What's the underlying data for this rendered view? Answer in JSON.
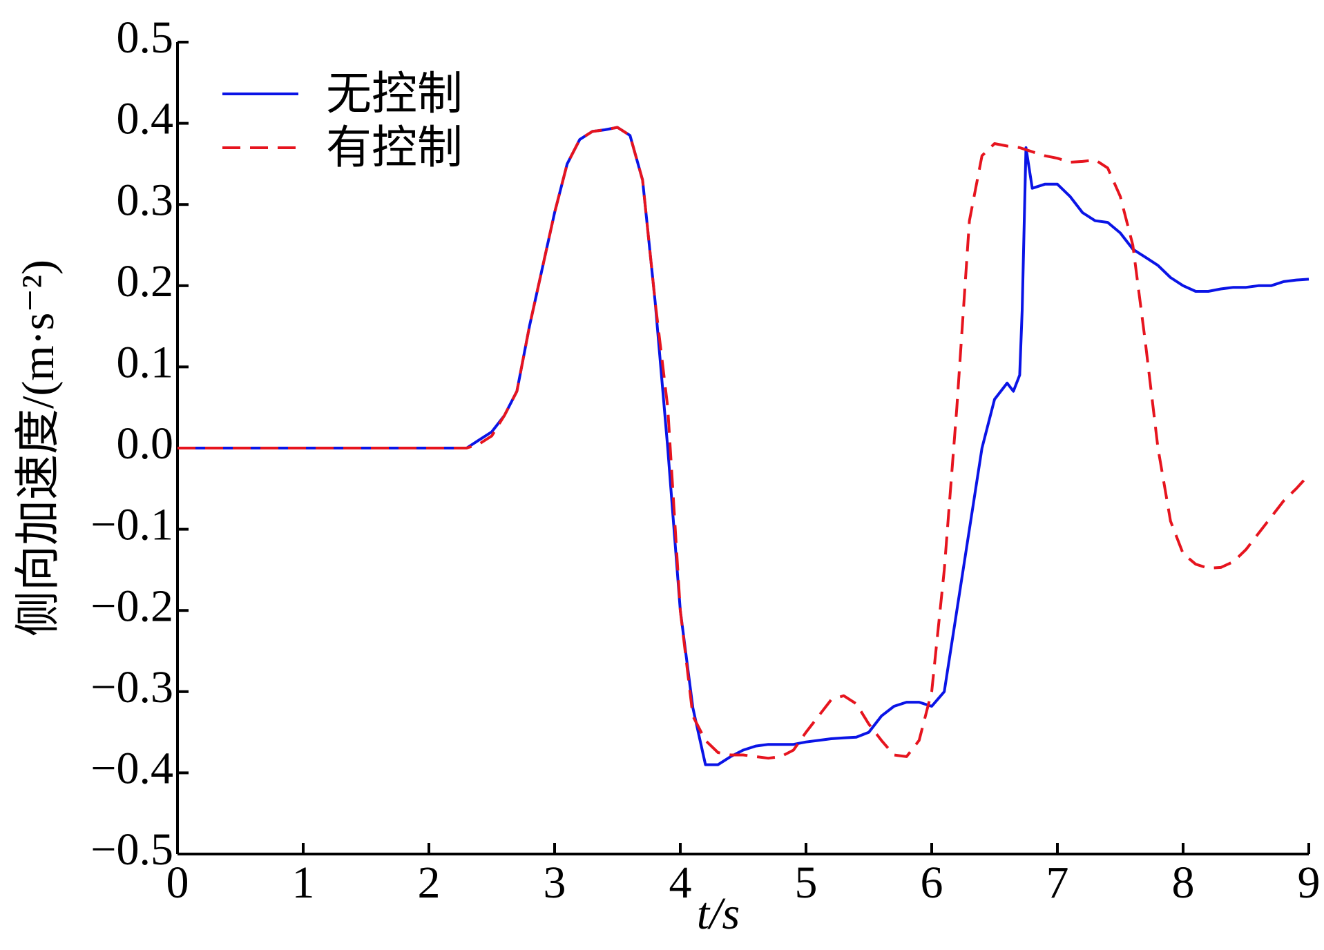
{
  "chart_data": {
    "type": "line",
    "xlabel": "t/s",
    "ylabel": "侧向加速度/(m·s⁻²)",
    "xlim": [
      0,
      9
    ],
    "ylim": [
      -0.5,
      0.5
    ],
    "xticks": [
      0,
      1,
      2,
      3,
      4,
      5,
      6,
      7,
      8,
      9
    ],
    "yticks": [
      {
        "value": -0.5,
        "label": "−0.5"
      },
      {
        "value": -0.4,
        "label": "−0.4"
      },
      {
        "value": -0.3,
        "label": "−0.3"
      },
      {
        "value": -0.2,
        "label": "−0.2"
      },
      {
        "value": -0.1,
        "label": "−0.1"
      },
      {
        "value": 0,
        "label": "0.0"
      },
      0.1,
      0.2,
      0.3,
      0.4,
      0.5
    ],
    "legend": "upper left",
    "series": [
      {
        "name": "无控制",
        "color": "#0a14e6",
        "linestyle": "solid",
        "x": [
          0,
          0.5,
          1,
          1.5,
          2,
          2.3,
          2.4,
          2.5,
          2.6,
          2.7,
          2.8,
          2.9,
          3.0,
          3.1,
          3.2,
          3.3,
          3.4,
          3.5,
          3.6,
          3.7,
          3.8,
          3.9,
          4.0,
          4.1,
          4.2,
          4.3,
          4.4,
          4.5,
          4.6,
          4.7,
          4.8,
          4.9,
          5.0,
          5.1,
          5.2,
          5.3,
          5.4,
          5.5,
          5.6,
          5.7,
          5.8,
          5.9,
          6.0,
          6.1,
          6.2,
          6.3,
          6.4,
          6.5,
          6.6,
          6.65,
          6.7,
          6.72,
          6.75,
          6.8,
          6.9,
          7.0,
          7.1,
          7.2,
          7.3,
          7.4,
          7.5,
          7.6,
          7.7,
          7.8,
          7.9,
          8.0,
          8.1,
          8.2,
          8.3,
          8.4,
          8.5,
          8.6,
          8.7,
          8.8,
          8.9,
          9.0
        ],
        "values": [
          0,
          0,
          0,
          0,
          0,
          0,
          0.01,
          0.02,
          0.04,
          0.07,
          0.15,
          0.22,
          0.29,
          0.35,
          0.38,
          0.39,
          0.392,
          0.395,
          0.385,
          0.33,
          0.18,
          0.0,
          -0.2,
          -0.32,
          -0.39,
          -0.39,
          -0.38,
          -0.372,
          -0.367,
          -0.365,
          -0.365,
          -0.365,
          -0.362,
          -0.36,
          -0.358,
          -0.357,
          -0.356,
          -0.35,
          -0.33,
          -0.318,
          -0.313,
          -0.313,
          -0.318,
          -0.3,
          -0.2,
          -0.1,
          0.0,
          0.06,
          0.08,
          0.07,
          0.09,
          0.17,
          0.37,
          0.32,
          0.325,
          0.325,
          0.31,
          0.29,
          0.28,
          0.278,
          0.265,
          0.245,
          0.235,
          0.225,
          0.21,
          0.2,
          0.193,
          0.193,
          0.196,
          0.198,
          0.198,
          0.2,
          0.2,
          0.205,
          0.207,
          0.208
        ]
      },
      {
        "name": "有控制",
        "color": "#e6141e",
        "linestyle": "dashed",
        "x": [
          0,
          0.5,
          1,
          1.5,
          2,
          2.3,
          2.4,
          2.5,
          2.6,
          2.7,
          2.8,
          2.9,
          3.0,
          3.1,
          3.2,
          3.3,
          3.4,
          3.5,
          3.6,
          3.7,
          3.8,
          3.9,
          4.0,
          4.1,
          4.2,
          4.3,
          4.4,
          4.5,
          4.6,
          4.7,
          4.8,
          4.9,
          5.0,
          5.1,
          5.2,
          5.3,
          5.4,
          5.5,
          5.6,
          5.7,
          5.8,
          5.9,
          6.0,
          6.1,
          6.2,
          6.3,
          6.4,
          6.5,
          6.6,
          6.7,
          6.8,
          6.9,
          7.0,
          7.1,
          7.2,
          7.3,
          7.4,
          7.5,
          7.6,
          7.7,
          7.8,
          7.9,
          8.0,
          8.1,
          8.2,
          8.3,
          8.4,
          8.5,
          8.6,
          8.7,
          8.8,
          8.9,
          9.0
        ],
        "values": [
          0,
          0,
          0,
          0,
          0,
          0,
          0.005,
          0.015,
          0.04,
          0.07,
          0.15,
          0.22,
          0.29,
          0.35,
          0.38,
          0.39,
          0.392,
          0.395,
          0.385,
          0.33,
          0.18,
          0.05,
          -0.2,
          -0.33,
          -0.36,
          -0.375,
          -0.378,
          -0.378,
          -0.38,
          -0.382,
          -0.38,
          -0.372,
          -0.35,
          -0.33,
          -0.31,
          -0.305,
          -0.315,
          -0.34,
          -0.36,
          -0.378,
          -0.38,
          -0.36,
          -0.3,
          -0.15,
          0.05,
          0.28,
          0.36,
          0.375,
          0.372,
          0.37,
          0.365,
          0.36,
          0.357,
          0.352,
          0.353,
          0.355,
          0.345,
          0.31,
          0.25,
          0.13,
          0.0,
          -0.09,
          -0.13,
          -0.143,
          -0.148,
          -0.147,
          -0.14,
          -0.125,
          -0.105,
          -0.085,
          -0.065,
          -0.05,
          -0.033
        ]
      }
    ]
  }
}
